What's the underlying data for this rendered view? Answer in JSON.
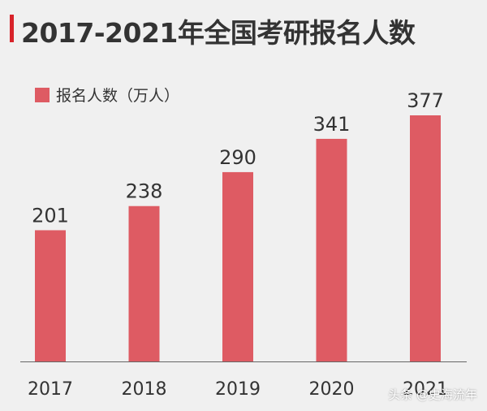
{
  "title": "2017-2021年全国考研报名人数",
  "watermark": "头条 @史海流年",
  "colors": {
    "accent_bar": "#d8232a",
    "bar": "#de5b63",
    "text": "#333333",
    "background": "#f0f0f0"
  },
  "chart_data": {
    "type": "bar",
    "categories": [
      "2017",
      "2018",
      "2019",
      "2020",
      "2021"
    ],
    "series": [
      {
        "name": "报名人数（万人）",
        "values": [
          201,
          238,
          290,
          341,
          377
        ]
      }
    ],
    "title": "2017-2021年全国考研报名人数",
    "xlabel": "",
    "ylabel": "",
    "ylim": [
      0,
      377
    ],
    "data_labels": true,
    "grid": false,
    "legend": "top-left"
  }
}
